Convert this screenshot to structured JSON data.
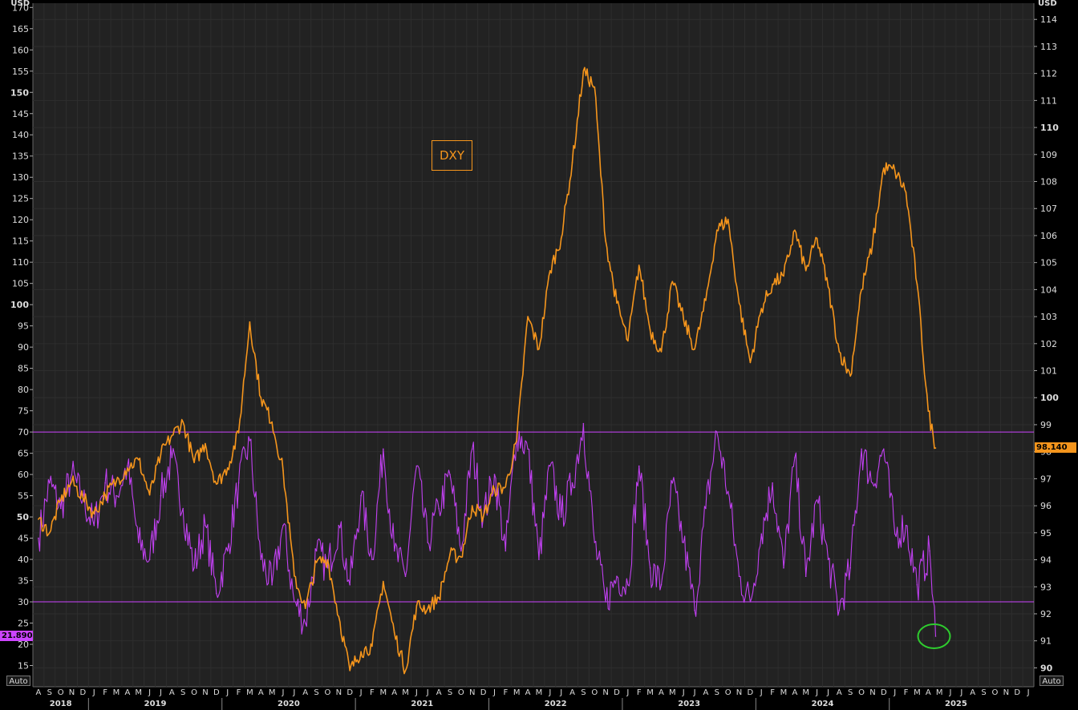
{
  "chart_data": {
    "type": "line",
    "left_axis": {
      "label": "USD",
      "range": [
        10,
        171
      ],
      "ticks": [
        15,
        20,
        25,
        30,
        35,
        40,
        45,
        50,
        55,
        60,
        65,
        70,
        75,
        80,
        85,
        90,
        95,
        100,
        105,
        110,
        115,
        120,
        125,
        130,
        135,
        140,
        145,
        150,
        155,
        160,
        165,
        170
      ],
      "bold_ticks": [
        50,
        100,
        150
      ]
    },
    "right_axis": {
      "label": "USD",
      "range": [
        89.3,
        114.6
      ],
      "ticks": [
        90,
        91,
        92,
        93,
        94,
        95,
        96,
        97,
        98,
        99,
        100,
        101,
        102,
        103,
        104,
        105,
        106,
        107,
        108,
        109,
        110,
        111,
        112,
        113,
        114
      ],
      "bold_ticks": [
        90,
        100,
        110
      ]
    },
    "x_axis": {
      "month_labels": [
        "A",
        "S",
        "O",
        "N",
        "D",
        "J",
        "F",
        "M",
        "A",
        "M",
        "J",
        "J",
        "A",
        "S",
        "O",
        "N",
        "D",
        "J",
        "F",
        "M",
        "A",
        "M",
        "J",
        "J",
        "A",
        "S",
        "O",
        "N",
        "D",
        "J",
        "F",
        "M",
        "A",
        "M",
        "J",
        "J",
        "A",
        "S",
        "O",
        "N",
        "D",
        "J",
        "F",
        "M",
        "A",
        "M",
        "J",
        "J",
        "A",
        "S",
        "O",
        "N",
        "D",
        "J",
        "F",
        "M",
        "A",
        "M",
        "J",
        "J",
        "A",
        "S",
        "O",
        "N",
        "D",
        "J",
        "F",
        "M",
        "A",
        "M",
        "J",
        "J",
        "A",
        "S",
        "O",
        "N",
        "D",
        "J",
        "F",
        "M",
        "A",
        "M",
        "J",
        "J",
        "A",
        "S",
        "O",
        "N",
        "D",
        "J"
      ],
      "years": [
        "2018",
        "2019",
        "2020",
        "2021",
        "2022",
        "2023",
        "2024",
        "2025"
      ]
    },
    "reference_lines": [
      {
        "axis": "left",
        "value": 70,
        "color": "#cc44ff"
      },
      {
        "axis": "left",
        "value": 30,
        "color": "#cc44ff"
      }
    ],
    "series": [
      {
        "name": "DXY",
        "axis": "right",
        "color": "#f5951c",
        "points": [
          [
            "2018-08",
            95.5
          ],
          [
            "2018-09",
            95.0
          ],
          [
            "2018-10",
            96.2
          ],
          [
            "2018-11",
            96.9
          ],
          [
            "2018-12",
            96.3
          ],
          [
            "2019-01",
            95.7
          ],
          [
            "2019-02",
            96.4
          ],
          [
            "2019-03",
            96.9
          ],
          [
            "2019-04",
            97.4
          ],
          [
            "2019-05",
            97.7
          ],
          [
            "2019-06",
            96.4
          ],
          [
            "2019-07",
            97.9
          ],
          [
            "2019-08",
            98.6
          ],
          [
            "2019-09",
            99.1
          ],
          [
            "2019-10",
            97.6
          ],
          [
            "2019-11",
            98.3
          ],
          [
            "2019-12",
            96.8
          ],
          [
            "2020-01",
            97.4
          ],
          [
            "2020-02",
            98.7
          ],
          [
            "2020-03",
            102.8
          ],
          [
            "2020-04",
            100.0
          ],
          [
            "2020-05",
            99.1
          ],
          [
            "2020-06",
            97.3
          ],
          [
            "2020-07",
            93.4
          ],
          [
            "2020-08",
            92.2
          ],
          [
            "2020-09",
            93.9
          ],
          [
            "2020-10",
            94.0
          ],
          [
            "2020-11",
            91.9
          ],
          [
            "2020-12",
            89.9
          ],
          [
            "2021-01",
            90.6
          ],
          [
            "2021-02",
            90.8
          ],
          [
            "2021-03",
            93.2
          ],
          [
            "2021-04",
            91.3
          ],
          [
            "2021-05",
            89.9
          ],
          [
            "2021-06",
            92.3
          ],
          [
            "2021-07",
            92.2
          ],
          [
            "2021-08",
            92.6
          ],
          [
            "2021-09",
            94.2
          ],
          [
            "2021-10",
            94.1
          ],
          [
            "2021-11",
            96.0
          ],
          [
            "2021-12",
            95.6
          ],
          [
            "2022-01",
            96.6
          ],
          [
            "2022-02",
            96.7
          ],
          [
            "2022-03",
            98.4
          ],
          [
            "2022-04",
            103.0
          ],
          [
            "2022-05",
            101.8
          ],
          [
            "2022-06",
            104.7
          ],
          [
            "2022-07",
            105.9
          ],
          [
            "2022-08",
            108.7
          ],
          [
            "2022-09",
            112.1
          ],
          [
            "2022-10",
            111.5
          ],
          [
            "2022-11",
            105.8
          ],
          [
            "2022-12",
            103.5
          ],
          [
            "2023-01",
            102.1
          ],
          [
            "2023-02",
            104.9
          ],
          [
            "2023-03",
            102.5
          ],
          [
            "2023-04",
            101.7
          ],
          [
            "2023-05",
            104.3
          ],
          [
            "2023-06",
            102.9
          ],
          [
            "2023-07",
            101.8
          ],
          [
            "2023-08",
            103.6
          ],
          [
            "2023-09",
            106.2
          ],
          [
            "2023-10",
            106.6
          ],
          [
            "2023-11",
            103.5
          ],
          [
            "2023-12",
            101.3
          ],
          [
            "2024-01",
            103.3
          ],
          [
            "2024-02",
            104.2
          ],
          [
            "2024-03",
            104.5
          ],
          [
            "2024-04",
            106.2
          ],
          [
            "2024-05",
            104.7
          ],
          [
            "2024-06",
            105.9
          ],
          [
            "2024-07",
            104.1
          ],
          [
            "2024-08",
            101.7
          ],
          [
            "2024-09",
            100.8
          ],
          [
            "2024-10",
            104.0
          ],
          [
            "2024-11",
            105.7
          ],
          [
            "2024-12",
            108.5
          ],
          [
            "2025-01",
            108.4
          ],
          [
            "2025-02",
            107.6
          ],
          [
            "2025-03",
            104.2
          ],
          [
            "2025-04",
            99.5
          ],
          [
            "2025-04-21",
            98.14
          ]
        ]
      },
      {
        "name": "",
        "axis": "left",
        "color": "#c040f0",
        "points": [
          [
            "2018-08",
            45
          ],
          [
            "2018-09",
            58
          ],
          [
            "2018-10",
            52
          ],
          [
            "2018-11",
            60
          ],
          [
            "2018-12",
            54
          ],
          [
            "2019-01",
            48
          ],
          [
            "2019-02",
            58
          ],
          [
            "2019-03",
            55
          ],
          [
            "2019-04",
            62
          ],
          [
            "2019-05",
            44
          ],
          [
            "2019-06",
            40
          ],
          [
            "2019-07",
            55
          ],
          [
            "2019-08",
            64
          ],
          [
            "2019-09",
            52
          ],
          [
            "2019-10",
            38
          ],
          [
            "2019-11",
            48
          ],
          [
            "2019-12",
            32
          ],
          [
            "2020-01",
            42
          ],
          [
            "2020-02",
            58
          ],
          [
            "2020-03",
            68
          ],
          [
            "2020-04",
            40
          ],
          [
            "2020-05",
            34
          ],
          [
            "2020-06",
            48
          ],
          [
            "2020-07",
            30
          ],
          [
            "2020-08",
            25
          ],
          [
            "2020-09",
            42
          ],
          [
            "2020-10",
            38
          ],
          [
            "2020-11",
            48
          ],
          [
            "2020-12",
            34
          ],
          [
            "2021-01",
            55
          ],
          [
            "2021-02",
            40
          ],
          [
            "2021-03",
            66
          ],
          [
            "2021-04",
            42
          ],
          [
            "2021-05",
            36
          ],
          [
            "2021-06",
            62
          ],
          [
            "2021-07",
            44
          ],
          [
            "2021-08",
            52
          ],
          [
            "2021-09",
            60
          ],
          [
            "2021-10",
            42
          ],
          [
            "2021-11",
            66
          ],
          [
            "2021-12",
            50
          ],
          [
            "2022-01",
            60
          ],
          [
            "2022-02",
            42
          ],
          [
            "2022-03",
            70
          ],
          [
            "2022-04",
            66
          ],
          [
            "2022-05",
            40
          ],
          [
            "2022-06",
            62
          ],
          [
            "2022-07",
            50
          ],
          [
            "2022-08",
            58
          ],
          [
            "2022-09",
            72
          ],
          [
            "2022-10",
            44
          ],
          [
            "2022-11",
            30
          ],
          [
            "2022-12",
            36
          ],
          [
            "2023-01",
            34
          ],
          [
            "2023-02",
            62
          ],
          [
            "2023-03",
            38
          ],
          [
            "2023-04",
            34
          ],
          [
            "2023-05",
            58
          ],
          [
            "2023-06",
            44
          ],
          [
            "2023-07",
            28
          ],
          [
            "2023-08",
            52
          ],
          [
            "2023-09",
            70
          ],
          [
            "2023-10",
            56
          ],
          [
            "2023-11",
            36
          ],
          [
            "2023-12",
            30
          ],
          [
            "2024-01",
            46
          ],
          [
            "2024-02",
            58
          ],
          [
            "2024-03",
            38
          ],
          [
            "2024-04",
            64
          ],
          [
            "2024-05",
            36
          ],
          [
            "2024-06",
            54
          ],
          [
            "2024-07",
            40
          ],
          [
            "2024-08",
            28
          ],
          [
            "2024-09",
            38
          ],
          [
            "2024-10",
            66
          ],
          [
            "2024-11",
            58
          ],
          [
            "2024-12",
            66
          ],
          [
            "2025-01",
            46
          ],
          [
            "2025-02",
            48
          ],
          [
            "2025-03",
            34
          ],
          [
            "2025-04-05",
            42
          ],
          [
            "2025-04-21",
            21.89
          ]
        ]
      }
    ],
    "last_values": {
      "left": "21.890",
      "right": "98.140"
    },
    "annotations": [
      {
        "type": "ellipse",
        "color": "#2ecc2e",
        "at": [
          "2025-04-21",
          21.89
        ]
      }
    ],
    "legend": {
      "text": "DXY"
    }
  },
  "controls": {
    "auto_label": "Auto"
  }
}
